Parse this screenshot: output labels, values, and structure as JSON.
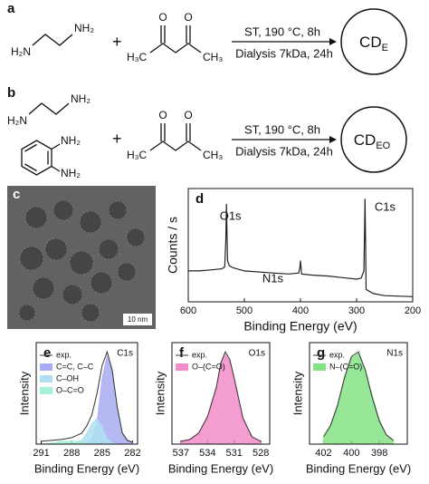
{
  "panels": {
    "a": {
      "label": "a",
      "amine": {
        "left": "H₂N",
        "right": "NH₂"
      },
      "plus": "+",
      "ketone": {
        "o1": "O",
        "o2": "O",
        "left": "H₃C",
        "right": "CH₃"
      },
      "conditions": [
        "ST, 190 °C, 8h",
        "Dialysis 7kDa, 24h"
      ],
      "product": {
        "main": "CD",
        "sub": "E"
      }
    },
    "b": {
      "label": "b",
      "amine": {
        "left": "H₂N",
        "right": "NH₂"
      },
      "diamine": {
        "top": "NH₂",
        "bottom": "NH₂"
      },
      "plus": "+",
      "ketone": {
        "o1": "O",
        "o2": "O",
        "left": "H₃C",
        "right": "CH₃"
      },
      "conditions": [
        "ST, 190 °C, 8h",
        "Dialysis 7kDa, 24h"
      ],
      "product": {
        "main": "CD",
        "sub": "EO"
      }
    },
    "c": {
      "label": "c",
      "scale_bar": "10 nm"
    }
  },
  "chart_data": [
    {
      "type": "line",
      "panel_label": "d",
      "x_label": "Binding Energy (eV)",
      "y_label": "Counts / s",
      "xlim": [
        600,
        200
      ],
      "xticks": [
        600,
        500,
        400,
        300,
        200
      ],
      "ylim": [
        0,
        110
      ],
      "x": [
        600,
        580,
        560,
        540,
        535,
        533,
        532,
        530,
        527,
        520,
        500,
        450,
        420,
        403,
        401,
        400,
        398,
        380,
        350,
        300,
        292,
        287,
        285,
        284,
        283,
        270,
        250,
        200
      ],
      "series": [
        {
          "name": null,
          "color": "#222",
          "values": [
            30,
            30,
            31,
            32,
            34,
            60,
            95,
            40,
            35,
            33,
            30,
            28,
            27,
            28,
            34,
            40,
            27,
            26,
            25,
            22,
            23,
            30,
            100,
            60,
            12,
            8,
            6,
            5
          ]
        }
      ],
      "annotations": [
        "O1s",
        "N1s",
        "C1s"
      ]
    },
    {
      "type": "area",
      "panel_label": "e",
      "peak_label": "C1s",
      "x_label": "Binding Energy (eV)",
      "y_label": "Intensity",
      "xlim": [
        291.5,
        281.5
      ],
      "xticks": [
        291,
        288,
        285,
        282
      ],
      "ylim": [
        0,
        110
      ],
      "x": [
        291,
        290,
        289,
        288,
        287,
        286.5,
        286,
        285.5,
        285,
        284.5,
        284,
        283.5,
        283,
        282.5,
        282
      ],
      "series": [
        {
          "name": "exp.",
          "color": "#333",
          "style": "line",
          "values": [
            3,
            4,
            5,
            7,
            12,
            20,
            32,
            55,
            85,
            100,
            80,
            40,
            12,
            4,
            2
          ]
        },
        {
          "name": "C=C, C–C",
          "color": "#a9acf2",
          "style": "area",
          "values": [
            0,
            0,
            0,
            0,
            1,
            2,
            5,
            22,
            70,
            95,
            78,
            38,
            11,
            3,
            1
          ]
        },
        {
          "name": "C–OH",
          "color": "#aee0f2",
          "style": "area",
          "values": [
            0,
            0,
            0,
            1,
            4,
            12,
            22,
            28,
            18,
            6,
            1,
            0,
            0,
            0,
            0
          ]
        },
        {
          "name": "O–C=O",
          "color": "#a6f0d4",
          "style": "area",
          "values": [
            0,
            1,
            3,
            3,
            2,
            1,
            0,
            0,
            0,
            0,
            0,
            0,
            0,
            0,
            0
          ]
        }
      ]
    },
    {
      "type": "area",
      "panel_label": "f",
      "peak_label": "O1s",
      "x_label": "Binding Energy (eV)",
      "y_label": "Intensity",
      "xlim": [
        538,
        527
      ],
      "xticks": [
        537,
        534,
        531,
        528
      ],
      "ylim": [
        0,
        110
      ],
      "x": [
        537,
        536,
        535,
        534,
        533,
        532.5,
        532,
        531.5,
        531,
        530,
        529,
        528
      ],
      "series": [
        {
          "name": "exp.",
          "color": "#333",
          "style": "line",
          "values": [
            3,
            5,
            12,
            30,
            62,
            88,
            100,
            92,
            72,
            28,
            8,
            3
          ]
        },
        {
          "name": "O–(C=O)",
          "color": "#f28cc8",
          "style": "area",
          "values": [
            2,
            4,
            11,
            29,
            60,
            86,
            97,
            90,
            70,
            27,
            7,
            2
          ]
        }
      ]
    },
    {
      "type": "area",
      "panel_label": "g",
      "peak_label": "N1s",
      "x_label": "Binding Energy (eV)",
      "y_label": "Intensity",
      "xlim": [
        403,
        396
      ],
      "xticks": [
        402,
        400,
        398
      ],
      "ylim": [
        0,
        110
      ],
      "x": [
        402,
        401.5,
        401,
        400.5,
        400,
        399.5,
        399,
        398.5,
        398,
        397.5,
        397
      ],
      "series": [
        {
          "name": "exp.",
          "color": "#333",
          "style": "line",
          "values": [
            8,
            20,
            42,
            72,
            95,
            100,
            80,
            50,
            25,
            10,
            4
          ]
        },
        {
          "name": "N–(C=O)",
          "color": "#86e286",
          "style": "area",
          "values": [
            6,
            18,
            40,
            70,
            93,
            98,
            80,
            52,
            26,
            10,
            4
          ]
        }
      ]
    }
  ]
}
